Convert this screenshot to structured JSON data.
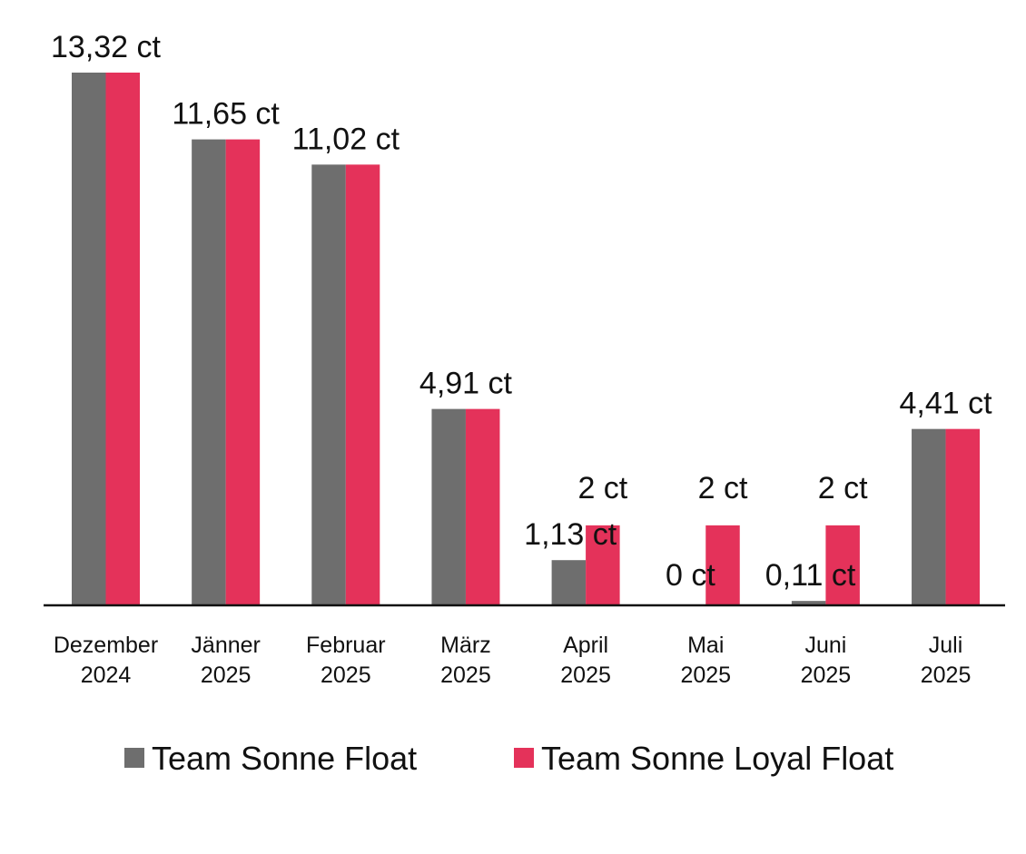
{
  "chart_data": {
    "type": "bar",
    "categories": [
      [
        "Dezember",
        "2024"
      ],
      [
        "Jänner",
        "2025"
      ],
      [
        "Februar",
        "2025"
      ],
      [
        "März",
        "2025"
      ],
      [
        "April",
        "2025"
      ],
      [
        "Mai",
        "2025"
      ],
      [
        "Juni",
        "2025"
      ],
      [
        "Juli",
        "2025"
      ]
    ],
    "series": [
      {
        "name": "Team Sonne Float",
        "color": "#6e6e6e",
        "values": [
          13.32,
          11.65,
          11.02,
          4.91,
          1.13,
          0,
          0.11,
          4.41
        ]
      },
      {
        "name": "Team Sonne Loyal Float",
        "color": "#e4325a",
        "values": [
          13.32,
          11.65,
          11.02,
          4.91,
          2,
          2,
          2,
          4.41
        ]
      }
    ],
    "data_labels": [
      "13,32 ct",
      "11,65 ct",
      "11,02 ct",
      "4,91 ct",
      "1,13 ct",
      "0 ct",
      "0,11 ct",
      "4,41 ct"
    ],
    "loyal_labels": [
      "",
      "",
      "",
      "",
      "2 ct",
      "2 ct",
      "2 ct",
      ""
    ],
    "ylim": [
      0,
      13.32
    ],
    "grid": false,
    "legend_position": "bottom"
  }
}
